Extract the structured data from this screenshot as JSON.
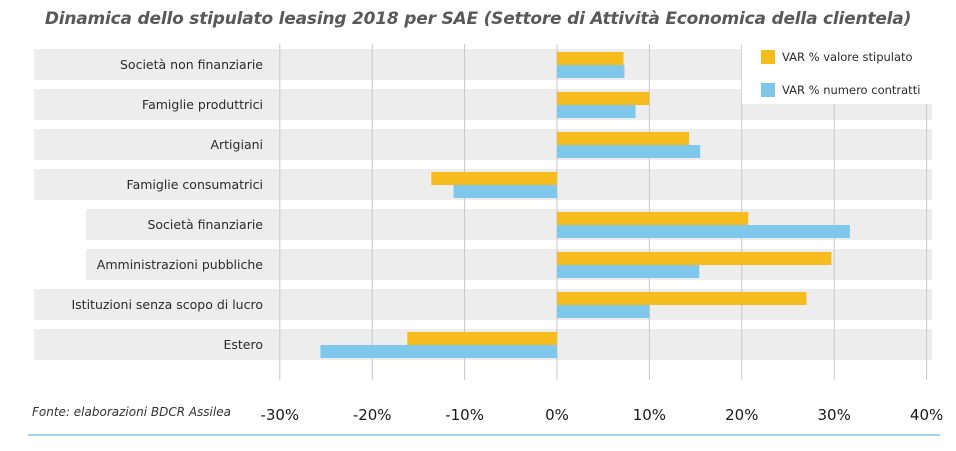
{
  "chart_data": {
    "type": "bar",
    "orientation": "horizontal",
    "title": "Dinamica dello stipulato leasing 2018 per SAE (Settore di Attività Economica della clientela)",
    "categories": [
      "Società non finanziarie",
      "Famiglie produttrici",
      "Artigiani",
      "Famiglie consumatrici",
      "Società finanziarie",
      "Amministrazioni pubbliche",
      "Istituzioni senza scopo di lucro",
      "Estero"
    ],
    "series": [
      {
        "name": "VAR % valore stipulato",
        "color": "#f6bb1d",
        "values": [
          7.2,
          10.0,
          14.3,
          -13.6,
          20.7,
          29.7,
          27.0,
          -16.2
        ]
      },
      {
        "name": "VAR % numero contratti",
        "color": "#7fc8ec",
        "values": [
          7.3,
          8.5,
          15.5,
          -11.2,
          31.7,
          15.4,
          10.0,
          -25.6
        ]
      }
    ],
    "x_ticks": [
      -30,
      -20,
      -10,
      0,
      10,
      20,
      30,
      40
    ],
    "x_tick_labels": [
      "-30%",
      "-20%",
      "-10%",
      "0%",
      "10%",
      "20%",
      "30%",
      "40%"
    ],
    "xlim": [
      -30,
      40
    ],
    "grid": true,
    "legend": "top-right"
  },
  "footer": {
    "source": "Fonte: elaborazioni BDCR Assilea"
  }
}
